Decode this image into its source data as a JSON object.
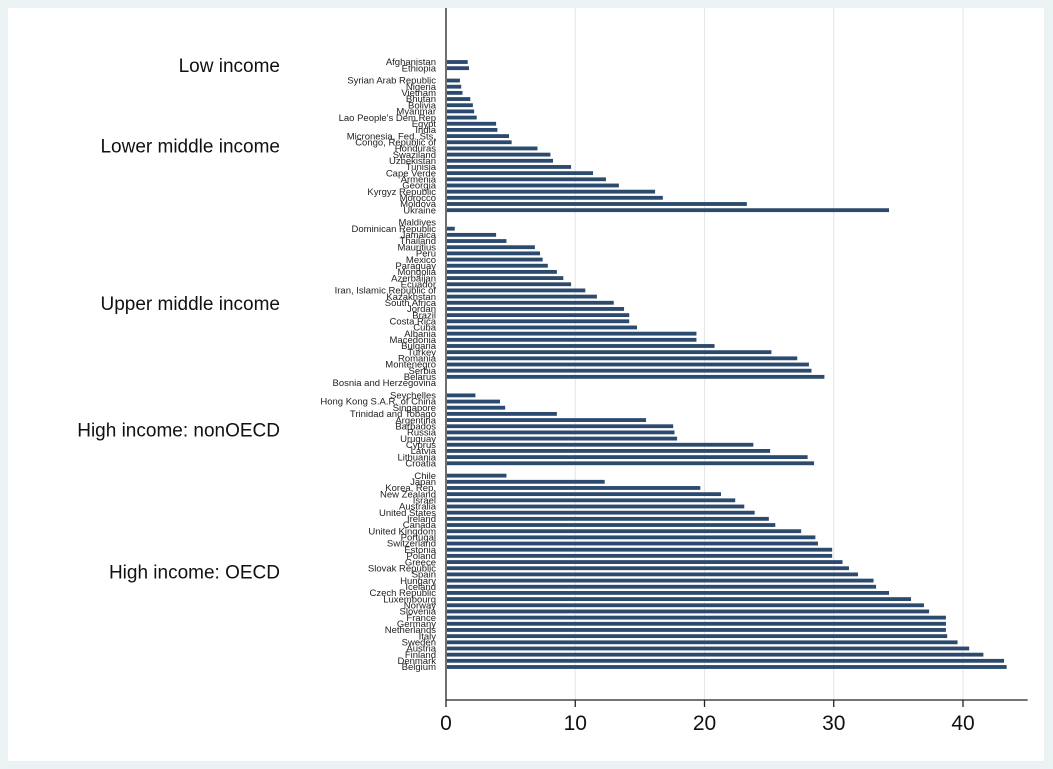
{
  "chart_data": {
    "type": "bar",
    "orientation": "horizontal",
    "title": "",
    "xlabel": "",
    "ylabel": "",
    "xlim": [
      0,
      45
    ],
    "xticks": [
      0,
      10,
      20,
      30,
      40
    ],
    "grid": true,
    "bar_color": "#2c4a6e",
    "groups": [
      {
        "name": "Low income",
        "categories": [
          "Afghanistan",
          "Ethiopia"
        ],
        "values": [
          1.6,
          1.7
        ]
      },
      {
        "name": "Lower middle income",
        "categories": [
          "Syrian Arab Republic",
          "Nigeria",
          "Vietnam",
          "Bhutan",
          "Bolivia",
          "Myanmar",
          "Lao People's Dem.Rep",
          "Egypt",
          "India",
          "Micronesia, Fed. Sts.",
          "Congo, Republic of",
          "Honduras",
          "Swaziland",
          "Uzbekistan",
          "Tunisia",
          "Cape Verde",
          "Armenia",
          "Georgia",
          "Kyrgyz Republic",
          "Morocco",
          "Moldova",
          "Ukraine"
        ],
        "values": [
          1.0,
          1.1,
          1.2,
          1.8,
          2.0,
          2.1,
          2.3,
          3.8,
          3.9,
          4.8,
          5.0,
          7.0,
          8.0,
          8.2,
          9.6,
          11.3,
          12.3,
          13.3,
          16.1,
          16.7,
          23.2,
          34.2
        ]
      },
      {
        "name": "Upper middle income",
        "categories": [
          "Maldives",
          "Dominican Republic",
          "Jamaica",
          "Thailand",
          "Mauritius",
          "Peru",
          "Mexico",
          "Paraguay",
          "Mongolia",
          "Azerbaijan",
          "Ecuador",
          "Iran, Islamic Republic of",
          "Kazakhstan",
          "South Africa",
          "Jordan",
          "Brazil",
          "Costa Rica",
          "Cuba",
          "Albania",
          "Macedonia",
          "Bulgaria",
          "Turkey",
          "Romania",
          "Montenegro",
          "Serbia",
          "Belarus",
          "Bosnia and Herzegovina"
        ],
        "values": [
          0,
          0.6,
          3.8,
          4.6,
          6.8,
          7.2,
          7.4,
          7.8,
          8.5,
          9.0,
          9.6,
          10.7,
          11.6,
          12.9,
          13.7,
          14.1,
          14.1,
          14.7,
          19.3,
          19.3,
          20.7,
          25.1,
          27.1,
          28.0,
          28.2,
          29.2,
          0
        ]
      },
      {
        "name": "High income: nonOECD",
        "categories": [
          "Seychelles",
          "Hong Kong S.A.R. of China",
          "Singapore",
          "Trinidad and Tobago",
          "Argentina",
          "Barbados",
          "Russia",
          "Uruguay",
          "Cyprus",
          "Latvia",
          "Lithuania",
          "Croatia"
        ],
        "values": [
          2.2,
          4.1,
          4.5,
          8.5,
          15.4,
          17.5,
          17.6,
          17.8,
          23.7,
          25.0,
          27.9,
          28.4
        ]
      },
      {
        "name": "High income: OECD",
        "categories": [
          "Chile",
          "Japan",
          "Korea, Rep.",
          "New Zealand",
          "Israel",
          "Australia",
          "United States",
          "Ireland",
          "Canada",
          "United Kingdom",
          "Portugal",
          "Switzerland",
          "Estonia",
          "Poland",
          "Greece",
          "Slovak Republic",
          "Spain",
          "Hungary",
          "Iceland",
          "Czech Republic",
          "Luxembourg",
          "Norway",
          "Slovenia",
          "France",
          "Germany",
          "Netherlands",
          "Italy",
          "Sweden",
          "Austria",
          "Finland",
          "Denmark",
          "Belgium"
        ],
        "values": [
          4.6,
          12.2,
          19.6,
          21.2,
          22.3,
          23.0,
          23.8,
          24.9,
          25.4,
          27.4,
          28.5,
          28.7,
          29.8,
          29.8,
          30.6,
          31.1,
          31.8,
          33.0,
          33.2,
          34.2,
          35.9,
          36.9,
          37.3,
          38.6,
          38.6,
          38.6,
          38.7,
          39.5,
          40.4,
          41.5,
          43.1,
          43.3
        ]
      }
    ]
  }
}
